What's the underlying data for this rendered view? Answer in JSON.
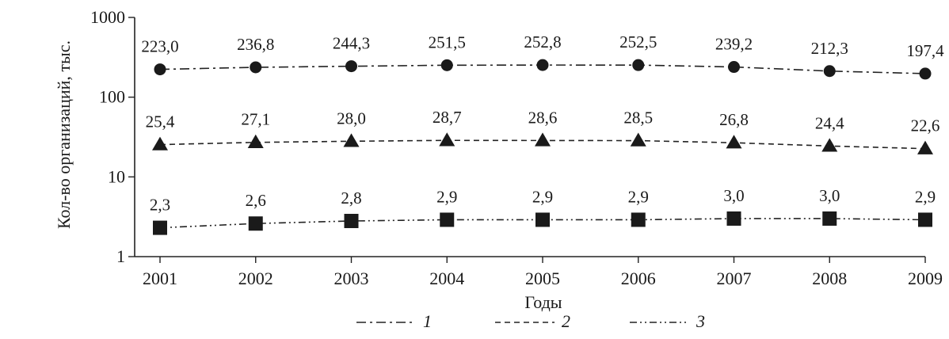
{
  "chart_data": {
    "type": "line",
    "title": "",
    "xlabel": "Годы",
    "ylabel": "Кол-во организаций, тыс.",
    "yscale": "log",
    "ylim": [
      1,
      1000
    ],
    "yticks": [
      "1",
      "10",
      "100",
      "1000"
    ],
    "x": [
      "2001",
      "2002",
      "2003",
      "2004",
      "2005",
      "2006",
      "2007",
      "2008",
      "2009"
    ],
    "series": [
      {
        "name": "1",
        "marker": "circle",
        "dash": "dash-dot",
        "values": [
          223.0,
          236.8,
          244.3,
          251.5,
          252.8,
          252.5,
          239.2,
          212.3,
          197.4
        ],
        "labels": [
          "223,0",
          "236,8",
          "244,3",
          "251,5",
          "252,8",
          "252,5",
          "239,2",
          "212,3",
          "197,4"
        ]
      },
      {
        "name": "2",
        "marker": "triangle",
        "dash": "dashed",
        "values": [
          25.4,
          27.1,
          28.0,
          28.7,
          28.6,
          28.5,
          26.8,
          24.4,
          22.6
        ],
        "labels": [
          "25,4",
          "27,1",
          "28,0",
          "28,7",
          "28,6",
          "28,5",
          "26,8",
          "24,4",
          "22,6"
        ]
      },
      {
        "name": "3",
        "marker": "square",
        "dash": "dash-dot-dot",
        "values": [
          2.3,
          2.6,
          2.8,
          2.9,
          2.9,
          2.9,
          3.0,
          3.0,
          2.9
        ],
        "labels": [
          "2,3",
          "2,6",
          "2,8",
          "2,9",
          "2,9",
          "2,9",
          "3,0",
          "3,0",
          "2,9"
        ]
      }
    ],
    "legend_position": "bottom",
    "grid": false
  }
}
